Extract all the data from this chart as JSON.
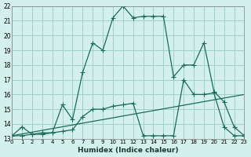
{
  "background_color": "#d4f0ed",
  "grid_color": "#a0cfc8",
  "line_color": "#1a6b5a",
  "xlabel": "Humidex (Indice chaleur)",
  "xlim": [
    0,
    23
  ],
  "ylim": [
    13,
    22
  ],
  "yticks": [
    13,
    14,
    15,
    16,
    17,
    18,
    19,
    20,
    21,
    22
  ],
  "xticks": [
    0,
    1,
    2,
    3,
    4,
    5,
    6,
    7,
    8,
    9,
    10,
    11,
    12,
    13,
    14,
    15,
    16,
    17,
    18,
    19,
    20,
    21,
    22,
    23
  ],
  "line1_x": [
    0,
    1,
    2,
    3,
    4,
    5,
    6,
    7,
    8,
    9,
    10,
    11,
    12,
    13,
    14,
    15,
    16,
    17,
    18,
    19,
    20,
    21,
    22,
    23
  ],
  "line1_y": [
    13.2,
    13.8,
    13.3,
    13.3,
    13.4,
    15.3,
    14.3,
    17.5,
    19.5,
    19.0,
    21.2,
    22.0,
    21.2,
    21.3,
    21.3,
    21.3,
    17.2,
    18.0,
    18.0,
    19.5,
    16.2,
    15.5,
    13.8,
    13.2
  ],
  "line2_x": [
    0,
    1,
    2,
    3,
    4,
    5,
    6,
    7,
    8,
    9,
    10,
    11,
    12,
    13,
    14,
    15,
    16,
    17,
    18,
    19,
    20,
    21,
    22,
    23
  ],
  "line2_y": [
    13.2,
    13.2,
    13.3,
    13.4,
    13.4,
    13.5,
    13.6,
    14.5,
    15.0,
    15.0,
    15.2,
    15.3,
    15.4,
    13.2,
    13.2,
    13.2,
    13.2,
    17.0,
    16.0,
    16.0,
    16.1,
    13.8,
    13.2,
    13.2
  ],
  "line3_x": [
    0,
    23
  ],
  "line3_y": [
    13.2,
    16.0
  ]
}
